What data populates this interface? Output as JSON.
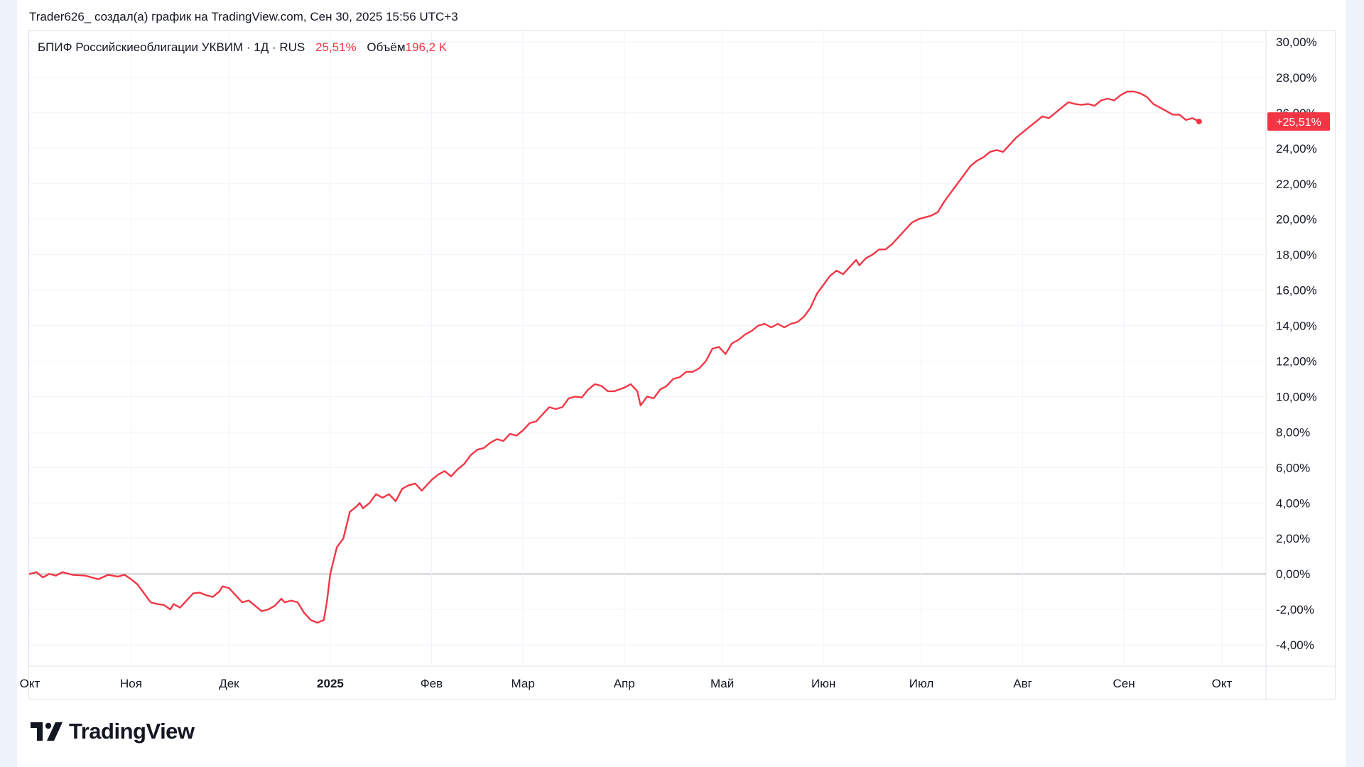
{
  "attribution": "Trader626_ создал(а) график на TradingView.com, Сен 30, 2025 15:56 UTC+3",
  "legend": {
    "symbol": "БПИФ Российскиеоблигации УКВИМ · 1Д · RUS",
    "change": "25,51%",
    "volume_label": "Объём",
    "volume_value": "196,2 K"
  },
  "last_value_badge": "+25,51%",
  "logo": {
    "wordmark": "TradingView",
    "icon": "tradingview-logo-icon"
  },
  "colors": {
    "line": "#f23645",
    "grid": "#f0f3fa",
    "zero_line": "#b2b5be",
    "text": "#131722"
  },
  "chart_data": {
    "type": "line",
    "title": "БПИФ Российскиеоблигации УКВИМ · 1Д · RUS",
    "ylabel": "",
    "xlabel": "",
    "y_unit": "%",
    "ylim": [
      -5.2,
      30.6
    ],
    "y_ticks": [
      "30,00%",
      "28,00%",
      "26,00%",
      "24,00%",
      "22,00%",
      "20,00%",
      "18,00%",
      "16,00%",
      "14,00%",
      "12,00%",
      "10,00%",
      "8,00%",
      "6,00%",
      "4,00%",
      "2,00%",
      "0,00%",
      "-2,00%",
      "-4,00%"
    ],
    "y_tick_values": [
      30,
      28,
      26,
      24,
      22,
      20,
      18,
      16,
      14,
      12,
      10,
      8,
      6,
      4,
      2,
      0,
      -2,
      -4
    ],
    "x_ticks": [
      {
        "label": "Окт",
        "date": "2024-10-01"
      },
      {
        "label": "Ноя",
        "date": "2024-11-01"
      },
      {
        "label": "Дек",
        "date": "2024-12-01"
      },
      {
        "label": "2025",
        "date": "2025-01-01",
        "bold": true
      },
      {
        "label": "Фев",
        "date": "2025-02-01"
      },
      {
        "label": "Мар",
        "date": "2025-03-01"
      },
      {
        "label": "Апр",
        "date": "2025-04-01"
      },
      {
        "label": "Май",
        "date": "2025-05-01"
      },
      {
        "label": "Июн",
        "date": "2025-06-01"
      },
      {
        "label": "Июл",
        "date": "2025-07-01"
      },
      {
        "label": "Авг",
        "date": "2025-08-01"
      },
      {
        "label": "Сен",
        "date": "2025-09-01"
      },
      {
        "label": "Окт",
        "date": "2025-10-01"
      }
    ],
    "series": [
      {
        "color": "#f23645",
        "points": [
          [
            "2024-10-01",
            0.0
          ],
          [
            "2024-10-03",
            0.1
          ],
          [
            "2024-10-05",
            -0.2
          ],
          [
            "2024-10-07",
            0.0
          ],
          [
            "2024-10-09",
            -0.1
          ],
          [
            "2024-10-11",
            0.1
          ],
          [
            "2024-10-14",
            -0.05
          ],
          [
            "2024-10-18",
            -0.1
          ],
          [
            "2024-10-22",
            -0.3
          ],
          [
            "2024-10-25",
            -0.05
          ],
          [
            "2024-10-28",
            -0.15
          ],
          [
            "2024-10-30",
            -0.05
          ],
          [
            "2024-11-01",
            -0.3
          ],
          [
            "2024-11-03",
            -0.6
          ],
          [
            "2024-11-05",
            -1.1
          ],
          [
            "2024-11-07",
            -1.6
          ],
          [
            "2024-11-09",
            -1.7
          ],
          [
            "2024-11-11",
            -1.75
          ],
          [
            "2024-11-13",
            -2.0
          ],
          [
            "2024-11-14",
            -1.7
          ],
          [
            "2024-11-16",
            -1.9
          ],
          [
            "2024-11-18",
            -1.5
          ],
          [
            "2024-11-20",
            -1.1
          ],
          [
            "2024-11-22",
            -1.05
          ],
          [
            "2024-11-24",
            -1.2
          ],
          [
            "2024-11-26",
            -1.3
          ],
          [
            "2024-11-28",
            -1.0
          ],
          [
            "2024-11-29",
            -0.7
          ],
          [
            "2024-12-01",
            -0.8
          ],
          [
            "2024-12-03",
            -1.2
          ],
          [
            "2024-12-05",
            -1.6
          ],
          [
            "2024-12-07",
            -1.5
          ],
          [
            "2024-12-09",
            -1.8
          ],
          [
            "2024-12-11",
            -2.1
          ],
          [
            "2024-12-13",
            -2.0
          ],
          [
            "2024-12-15",
            -1.8
          ],
          [
            "2024-12-17",
            -1.4
          ],
          [
            "2024-12-18",
            -1.6
          ],
          [
            "2024-12-20",
            -1.5
          ],
          [
            "2024-12-22",
            -1.6
          ],
          [
            "2024-12-24",
            -2.2
          ],
          [
            "2024-12-26",
            -2.6
          ],
          [
            "2024-12-28",
            -2.75
          ],
          [
            "2024-12-30",
            -2.6
          ],
          [
            "2024-12-31",
            -1.5
          ],
          [
            "2025-01-01",
            0.0
          ],
          [
            "2025-01-03",
            1.5
          ],
          [
            "2025-01-05",
            2.0
          ],
          [
            "2025-01-07",
            3.5
          ],
          [
            "2025-01-09",
            3.8
          ],
          [
            "2025-01-10",
            4.0
          ],
          [
            "2025-01-11",
            3.7
          ],
          [
            "2025-01-13",
            4.0
          ],
          [
            "2025-01-15",
            4.5
          ],
          [
            "2025-01-17",
            4.3
          ],
          [
            "2025-01-19",
            4.5
          ],
          [
            "2025-01-21",
            4.1
          ],
          [
            "2025-01-23",
            4.8
          ],
          [
            "2025-01-25",
            5.0
          ],
          [
            "2025-01-27",
            5.1
          ],
          [
            "2025-01-29",
            4.7
          ],
          [
            "2025-02-01",
            5.3
          ],
          [
            "2025-02-03",
            5.6
          ],
          [
            "2025-02-05",
            5.8
          ],
          [
            "2025-02-07",
            5.5
          ],
          [
            "2025-02-09",
            5.9
          ],
          [
            "2025-02-11",
            6.2
          ],
          [
            "2025-02-13",
            6.7
          ],
          [
            "2025-02-15",
            7.0
          ],
          [
            "2025-02-17",
            7.1
          ],
          [
            "2025-02-19",
            7.4
          ],
          [
            "2025-02-21",
            7.6
          ],
          [
            "2025-02-23",
            7.5
          ],
          [
            "2025-02-25",
            7.9
          ],
          [
            "2025-02-27",
            7.8
          ],
          [
            "2025-03-01",
            8.1
          ],
          [
            "2025-03-03",
            8.5
          ],
          [
            "2025-03-05",
            8.6
          ],
          [
            "2025-03-07",
            9.0
          ],
          [
            "2025-03-09",
            9.4
          ],
          [
            "2025-03-11",
            9.3
          ],
          [
            "2025-03-13",
            9.4
          ],
          [
            "2025-03-15",
            9.9
          ],
          [
            "2025-03-17",
            10.0
          ],
          [
            "2025-03-19",
            9.95
          ],
          [
            "2025-03-21",
            10.4
          ],
          [
            "2025-03-23",
            10.7
          ],
          [
            "2025-03-25",
            10.6
          ],
          [
            "2025-03-27",
            10.3
          ],
          [
            "2025-03-29",
            10.3
          ],
          [
            "2025-04-01",
            10.5
          ],
          [
            "2025-04-03",
            10.7
          ],
          [
            "2025-04-05",
            10.3
          ],
          [
            "2025-04-06",
            9.5
          ],
          [
            "2025-04-08",
            10.0
          ],
          [
            "2025-04-10",
            9.9
          ],
          [
            "2025-04-12",
            10.4
          ],
          [
            "2025-04-14",
            10.6
          ],
          [
            "2025-04-16",
            11.0
          ],
          [
            "2025-04-18",
            11.1
          ],
          [
            "2025-04-20",
            11.4
          ],
          [
            "2025-04-22",
            11.4
          ],
          [
            "2025-04-24",
            11.6
          ],
          [
            "2025-04-26",
            12.0
          ],
          [
            "2025-04-28",
            12.7
          ],
          [
            "2025-04-30",
            12.8
          ],
          [
            "2025-05-02",
            12.4
          ],
          [
            "2025-05-04",
            13.0
          ],
          [
            "2025-05-06",
            13.2
          ],
          [
            "2025-05-08",
            13.5
          ],
          [
            "2025-05-10",
            13.7
          ],
          [
            "2025-05-12",
            14.0
          ],
          [
            "2025-05-14",
            14.1
          ],
          [
            "2025-05-16",
            13.9
          ],
          [
            "2025-05-18",
            14.1
          ],
          [
            "2025-05-20",
            13.9
          ],
          [
            "2025-05-22",
            14.1
          ],
          [
            "2025-05-24",
            14.2
          ],
          [
            "2025-05-26",
            14.5
          ],
          [
            "2025-05-28",
            15.0
          ],
          [
            "2025-05-30",
            15.8
          ],
          [
            "2025-06-01",
            16.3
          ],
          [
            "2025-06-03",
            16.8
          ],
          [
            "2025-06-05",
            17.1
          ],
          [
            "2025-06-07",
            16.9
          ],
          [
            "2025-06-09",
            17.3
          ],
          [
            "2025-06-11",
            17.7
          ],
          [
            "2025-06-12",
            17.4
          ],
          [
            "2025-06-14",
            17.8
          ],
          [
            "2025-06-16",
            18.0
          ],
          [
            "2025-06-18",
            18.3
          ],
          [
            "2025-06-20",
            18.3
          ],
          [
            "2025-06-22",
            18.6
          ],
          [
            "2025-06-24",
            19.0
          ],
          [
            "2025-06-26",
            19.4
          ],
          [
            "2025-06-28",
            19.8
          ],
          [
            "2025-06-30",
            20.0
          ],
          [
            "2025-07-02",
            20.1
          ],
          [
            "2025-07-04",
            20.2
          ],
          [
            "2025-07-06",
            20.4
          ],
          [
            "2025-07-08",
            21.0
          ],
          [
            "2025-07-10",
            21.5
          ],
          [
            "2025-07-12",
            22.0
          ],
          [
            "2025-07-14",
            22.5
          ],
          [
            "2025-07-16",
            23.0
          ],
          [
            "2025-07-18",
            23.3
          ],
          [
            "2025-07-20",
            23.5
          ],
          [
            "2025-07-22",
            23.8
          ],
          [
            "2025-07-24",
            23.9
          ],
          [
            "2025-07-26",
            23.8
          ],
          [
            "2025-07-28",
            24.2
          ],
          [
            "2025-07-30",
            24.6
          ],
          [
            "2025-08-01",
            24.9
          ],
          [
            "2025-08-03",
            25.2
          ],
          [
            "2025-08-05",
            25.5
          ],
          [
            "2025-08-07",
            25.8
          ],
          [
            "2025-08-09",
            25.7
          ],
          [
            "2025-08-11",
            26.0
          ],
          [
            "2025-08-13",
            26.3
          ],
          [
            "2025-08-15",
            26.6
          ],
          [
            "2025-08-17",
            26.5
          ],
          [
            "2025-08-19",
            26.45
          ],
          [
            "2025-08-21",
            26.5
          ],
          [
            "2025-08-23",
            26.4
          ],
          [
            "2025-08-25",
            26.7
          ],
          [
            "2025-08-27",
            26.8
          ],
          [
            "2025-08-29",
            26.7
          ],
          [
            "2025-08-31",
            27.0
          ],
          [
            "2025-09-02",
            27.2
          ],
          [
            "2025-09-04",
            27.2
          ],
          [
            "2025-09-06",
            27.1
          ],
          [
            "2025-09-08",
            26.9
          ],
          [
            "2025-09-10",
            26.5
          ],
          [
            "2025-09-12",
            26.3
          ],
          [
            "2025-09-14",
            26.1
          ],
          [
            "2025-09-16",
            25.9
          ],
          [
            "2025-09-18",
            25.9
          ],
          [
            "2025-09-20",
            25.6
          ],
          [
            "2025-09-22",
            25.7
          ],
          [
            "2025-09-24",
            25.51
          ]
        ]
      }
    ],
    "last_value": 25.51,
    "grid": true,
    "legend": "top-left"
  }
}
